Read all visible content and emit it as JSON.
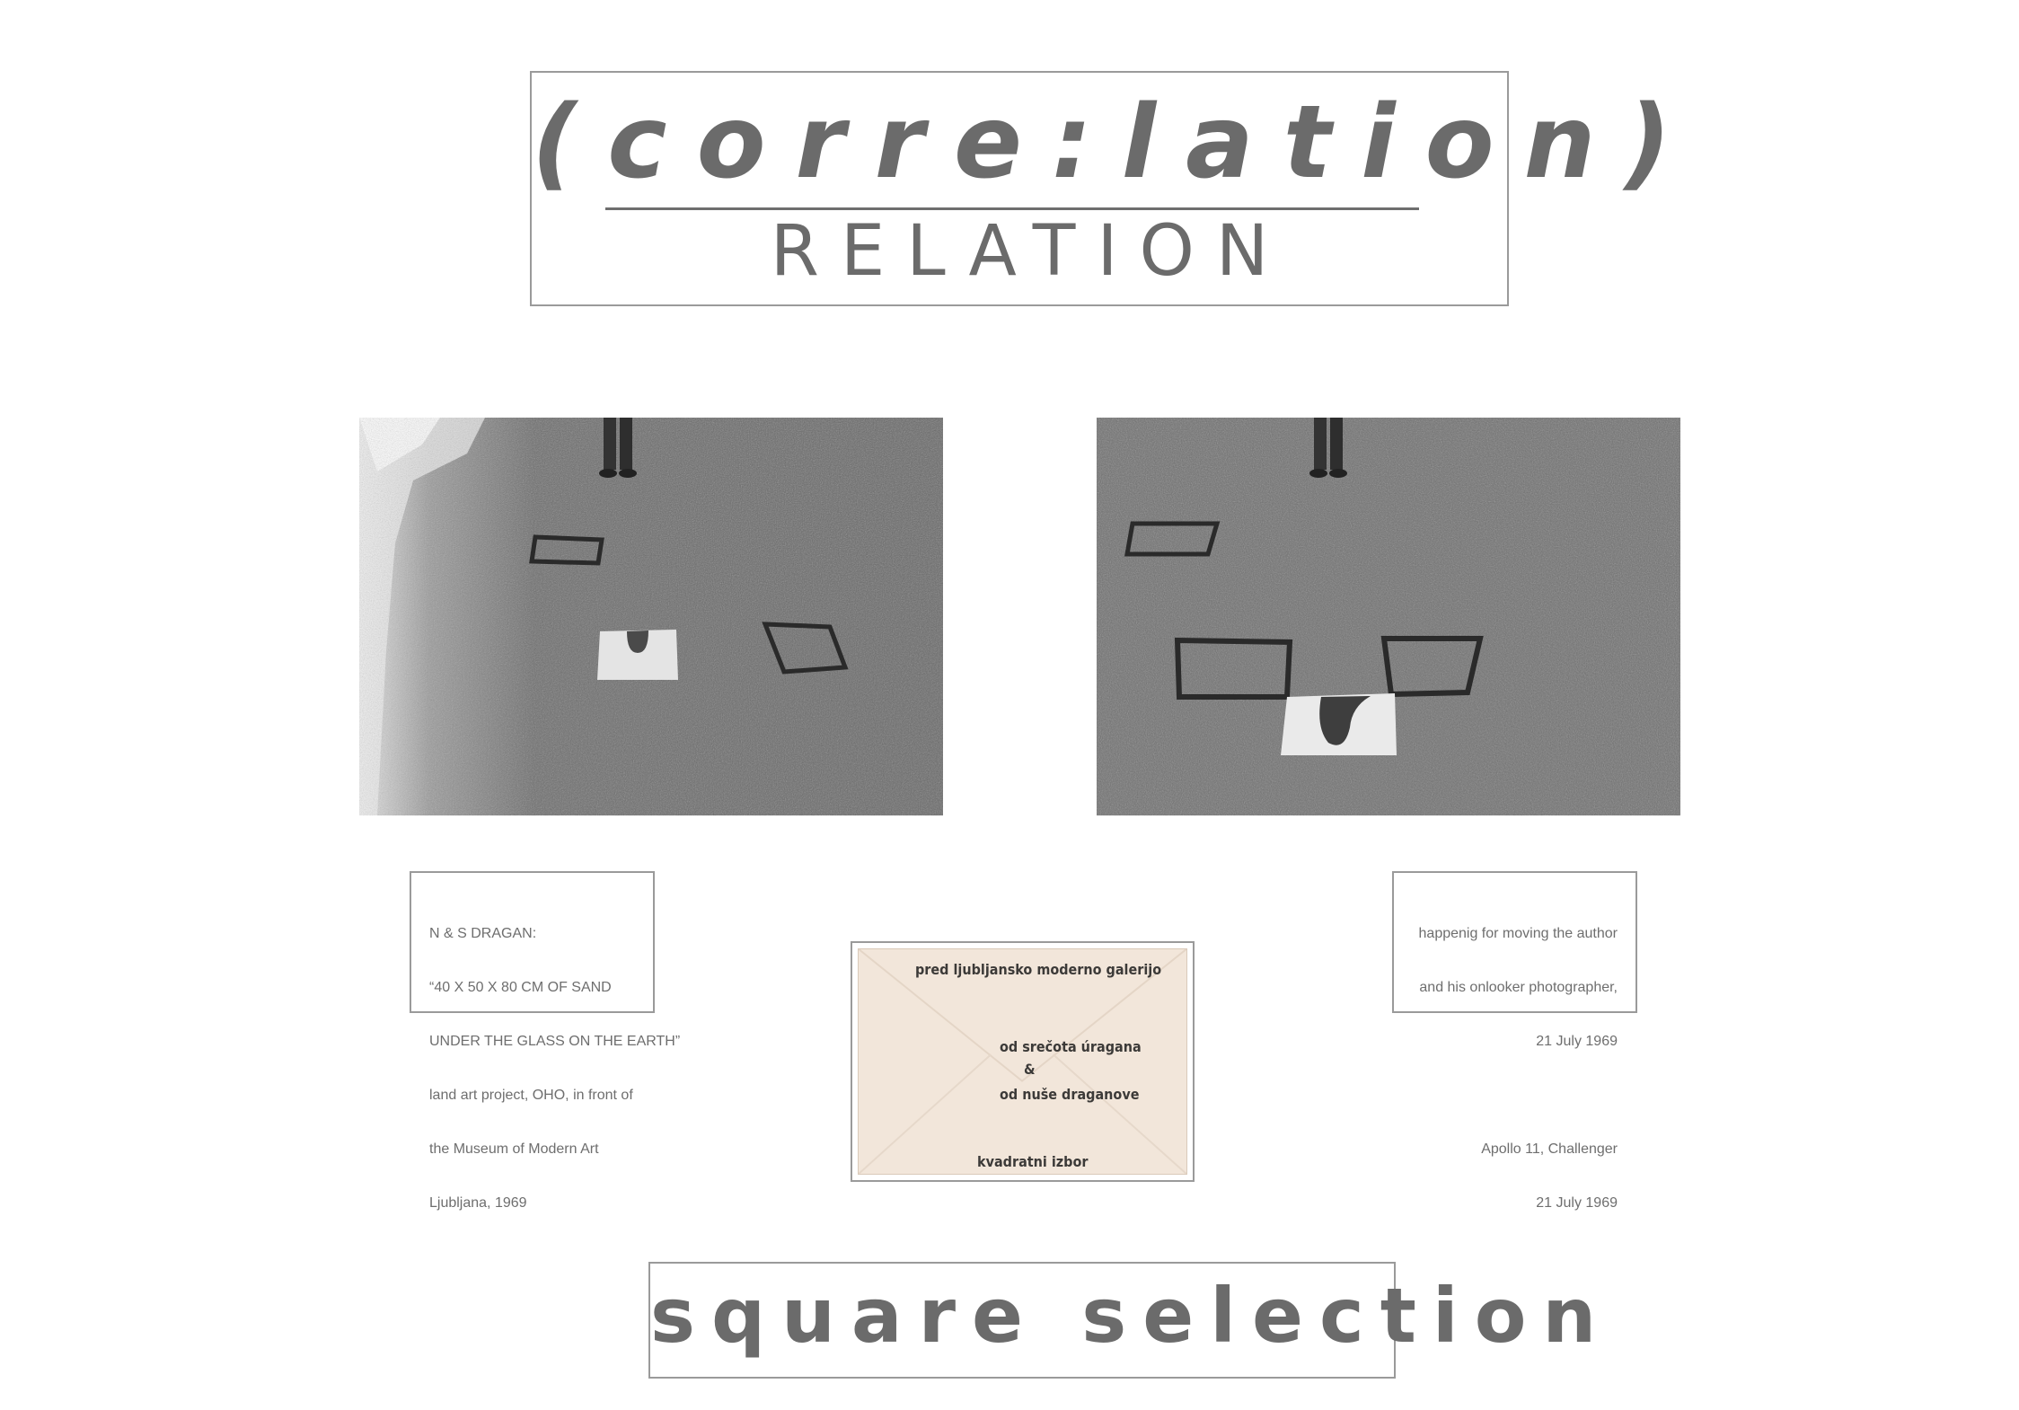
{
  "header": {
    "title": "(corre:lation)",
    "subtitle": "RELATION"
  },
  "captions": {
    "left": [
      "N & S DRAGAN:",
      "“40 X 50 X 80 CM OF SAND",
      "UNDER THE GLASS ON THE EARTH”",
      "land art project, OHO, in front of",
      "the Museum of Modern Art",
      "Ljubljana, 1969"
    ],
    "right": [
      "happenig for moving the author",
      "and his onlooker photographer,",
      "21 July 1969",
      "",
      "Apollo 11, Challenger",
      "21 July 1969"
    ]
  },
  "envelope": {
    "line1": "pred ljubljansko moderno galerijo",
    "line2": "od srečota úragana",
    "line3": "&",
    "line4": "od nuše draganove",
    "line5": "kvadratni izbor"
  },
  "footer": {
    "title": "square selection"
  },
  "colors": {
    "text_gray": "#6b6b6b",
    "frame_gray": "#9a9a9a",
    "envelope_paper": "#f2e6da"
  }
}
